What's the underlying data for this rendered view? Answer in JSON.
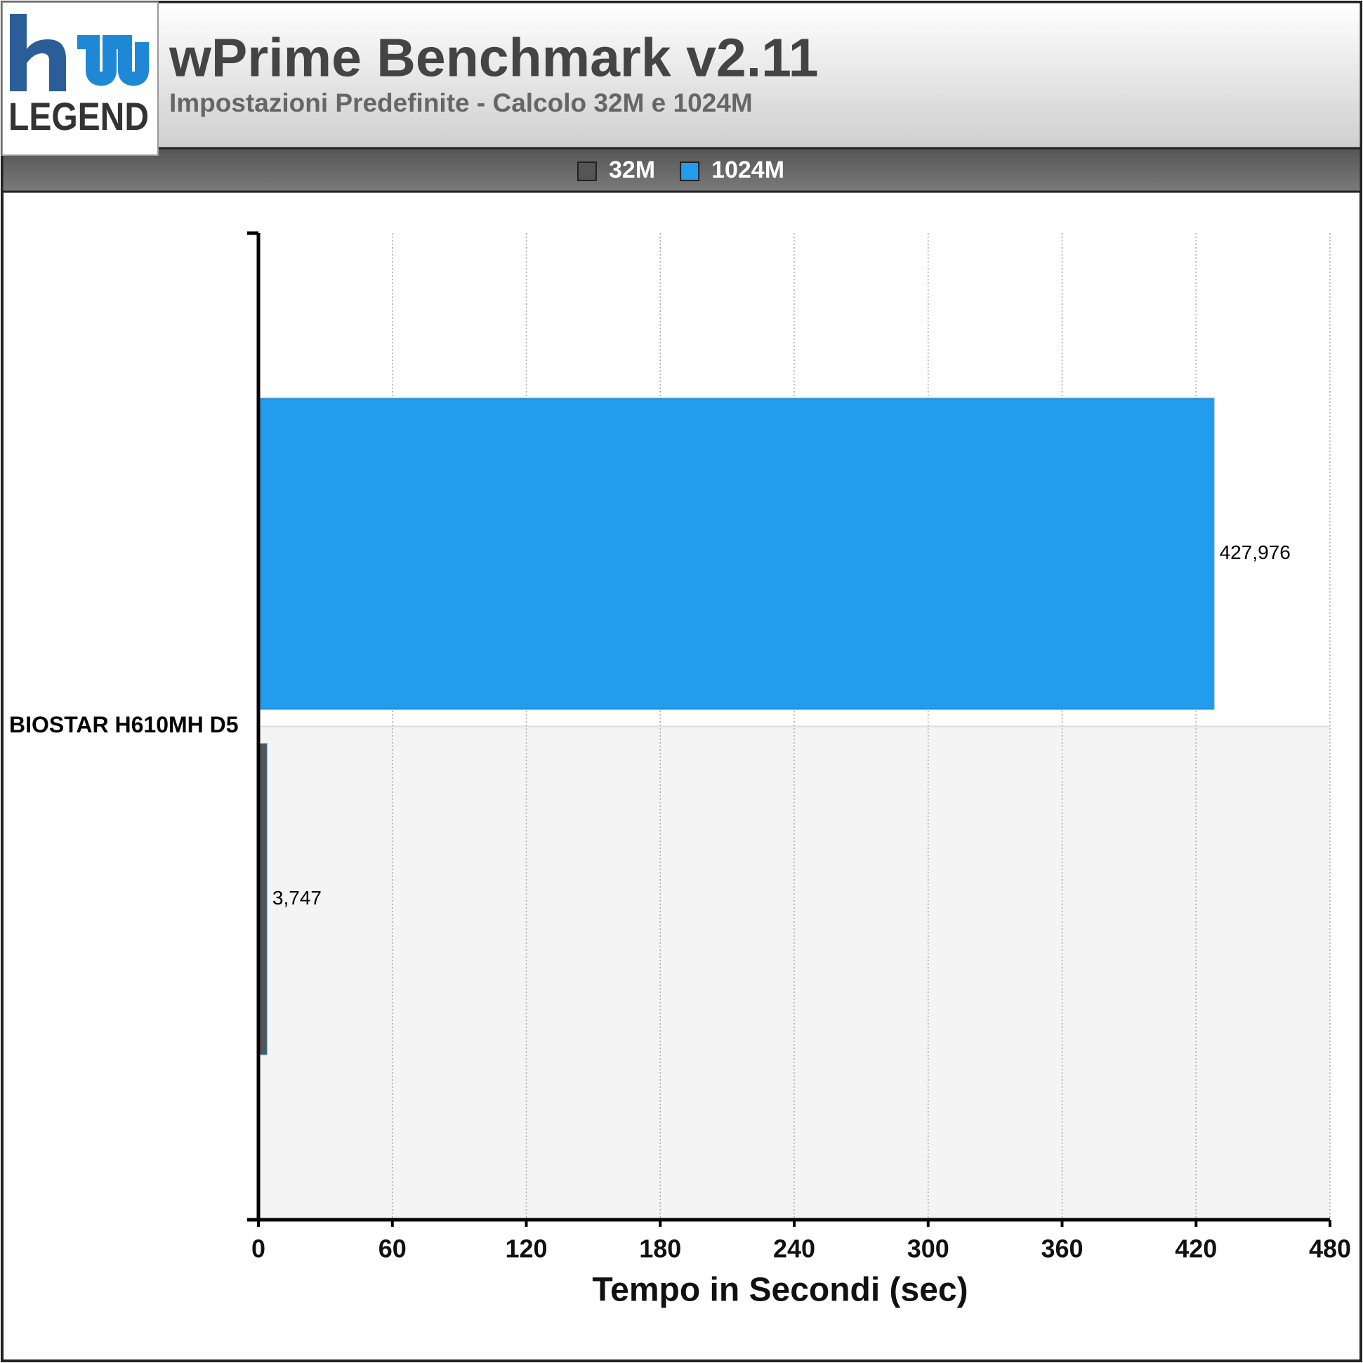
{
  "logo_text": "LEGEND",
  "chart_data": {
    "type": "bar",
    "orientation": "horizontal",
    "title": "wPrime Benchmark v2.11",
    "subtitle": "Impostazioni Predefinite - Calcolo 32M e 1024M",
    "x_label": "Tempo in Secondi (sec)",
    "categories": [
      "BIOSTAR H610MH D5"
    ],
    "series": [
      {
        "name": "32M",
        "color": "#555555",
        "values": [
          3.747
        ],
        "value_labels": [
          "3,747"
        ]
      },
      {
        "name": "1024M",
        "color": "#229cec",
        "values": [
          427.976
        ],
        "value_labels": [
          "427,976"
        ]
      }
    ],
    "xlim": [
      0,
      480
    ],
    "xticks": [
      0,
      60,
      120,
      180,
      240,
      300,
      360,
      420,
      480
    ],
    "grid": true,
    "legend": "top"
  }
}
